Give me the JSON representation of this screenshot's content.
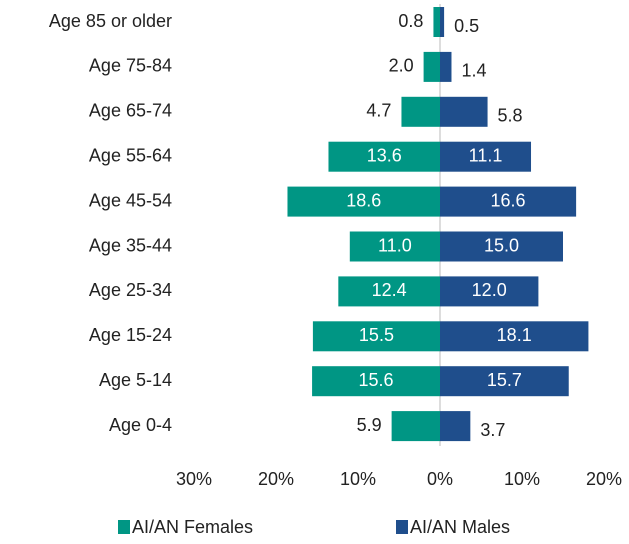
{
  "chart_data": {
    "type": "pyramid",
    "categories": [
      "Age 85 or older",
      "Age 75-84",
      "Age 65-74",
      "Age 55-64",
      "Age 45-54",
      "Age 35-44",
      "Age 25-34",
      "Age 15-24",
      "Age 5-14",
      "Age 0-4"
    ],
    "series": [
      {
        "name": "AI/AN Females",
        "color": "#009684",
        "side": "left",
        "values": [
          0.8,
          2.0,
          4.7,
          13.6,
          18.6,
          11.0,
          12.4,
          15.5,
          15.6,
          5.9
        ],
        "value_labels": [
          "0.8",
          "2.0",
          "4.7",
          "13.6",
          "18.6",
          "11.0",
          "12.4",
          "15.5",
          "15.6",
          "5.9"
        ]
      },
      {
        "name": "AI/AN Males",
        "color": "#1f4e8c",
        "side": "right",
        "values": [
          0.5,
          1.4,
          5.8,
          11.1,
          16.6,
          15.0,
          12.0,
          18.1,
          15.7,
          3.7
        ],
        "value_labels": [
          "0.5",
          "1.4",
          "5.8",
          "11.1",
          "16.6",
          "15.0",
          "12.0",
          "18.1",
          "15.7",
          "3.7"
        ]
      }
    ],
    "xlim": [
      -30,
      20
    ],
    "xticks": [
      {
        "value": -30,
        "label": "30%"
      },
      {
        "value": -20,
        "label": "20%"
      },
      {
        "value": -10,
        "label": "10%"
      },
      {
        "value": 0,
        "label": "0%"
      },
      {
        "value": 10,
        "label": "10%"
      },
      {
        "value": 20,
        "label": "20%"
      }
    ],
    "legend": "bottom"
  }
}
